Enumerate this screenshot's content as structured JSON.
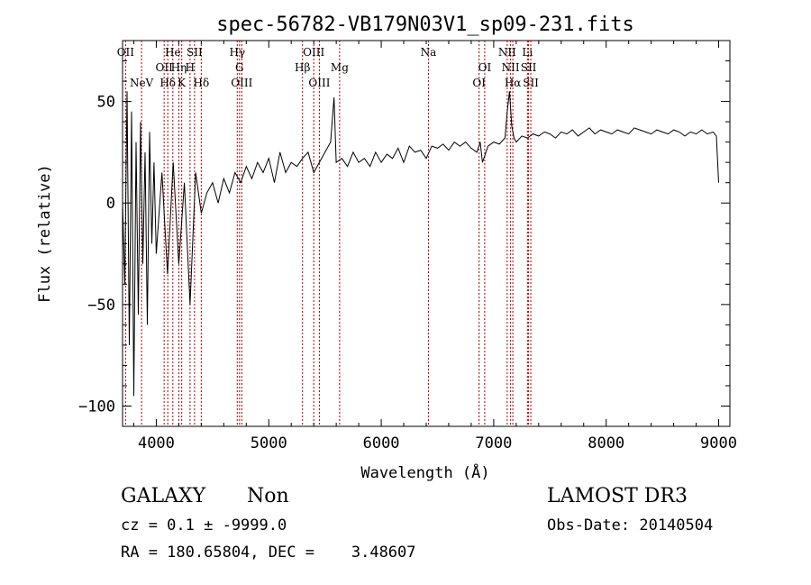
{
  "chart_data": {
    "type": "line",
    "title": "spec-56782-VB179N03V1_sp09-231.fits",
    "xlabel": "Wavelength (Å)",
    "ylabel": "Flux (relative)",
    "xlim": [
      3700,
      9100
    ],
    "ylim": [
      -110,
      80
    ],
    "x_ticks": [
      4000,
      5000,
      6000,
      7000,
      8000,
      9000
    ],
    "x_tick_labels": [
      "4000",
      "5000",
      "6000",
      "7000",
      "8000",
      "9000"
    ],
    "y_ticks": [
      -100,
      -50,
      0,
      50
    ],
    "y_tick_labels": [
      "−100",
      "−50",
      "0",
      "50"
    ],
    "series": [
      {
        "name": "spectrum",
        "x": [
          3700,
          3720,
          3740,
          3760,
          3780,
          3800,
          3820,
          3840,
          3860,
          3880,
          3900,
          3920,
          3940,
          3960,
          3980,
          4000,
          4050,
          4100,
          4150,
          4200,
          4250,
          4300,
          4350,
          4400,
          4450,
          4500,
          4550,
          4600,
          4650,
          4700,
          4750,
          4800,
          4850,
          4900,
          4950,
          5000,
          5050,
          5100,
          5150,
          5200,
          5250,
          5300,
          5350,
          5400,
          5450,
          5500,
          5550,
          5580,
          5600,
          5650,
          5700,
          5750,
          5800,
          5850,
          5900,
          5950,
          6000,
          6050,
          6100,
          6150,
          6200,
          6250,
          6300,
          6350,
          6400,
          6450,
          6500,
          6550,
          6600,
          6650,
          6700,
          6750,
          6800,
          6850,
          6880,
          6900,
          6950,
          7000,
          7050,
          7100,
          7120,
          7140,
          7160,
          7180,
          7200,
          7250,
          7300,
          7350,
          7400,
          7450,
          7500,
          7550,
          7600,
          7650,
          7700,
          7750,
          7800,
          7850,
          7900,
          7950,
          8000,
          8050,
          8100,
          8150,
          8200,
          8250,
          8300,
          8350,
          8400,
          8450,
          8500,
          8550,
          8600,
          8650,
          8700,
          8750,
          8800,
          8850,
          8900,
          8950,
          8980,
          9000
        ],
        "y": [
          0,
          -40,
          55,
          -70,
          45,
          -95,
          30,
          -55,
          40,
          -30,
          25,
          -60,
          35,
          -20,
          20,
          -25,
          15,
          -35,
          20,
          -30,
          10,
          -50,
          15,
          -5,
          5,
          10,
          0,
          12,
          5,
          15,
          10,
          18,
          12,
          20,
          15,
          22,
          10,
          25,
          15,
          20,
          18,
          22,
          25,
          15,
          20,
          25,
          30,
          52,
          20,
          22,
          18,
          25,
          20,
          22,
          18,
          25,
          20,
          24,
          22,
          27,
          20,
          28,
          25,
          26,
          22,
          28,
          27,
          29,
          26,
          30,
          28,
          30,
          27,
          25,
          30,
          20,
          28,
          30,
          29,
          32,
          45,
          55,
          38,
          32,
          30,
          33,
          32,
          34,
          33,
          35,
          34,
          32,
          35,
          34,
          36,
          33,
          35,
          37,
          34,
          36,
          35,
          34,
          36,
          35,
          34,
          37,
          36,
          35,
          34,
          36,
          35,
          34,
          36,
          35,
          33,
          35,
          34,
          36,
          34,
          35,
          33,
          10
        ]
      }
    ],
    "line_markers": [
      {
        "x": 3727,
        "label": "OII",
        "row": 1
      },
      {
        "x": 3869,
        "label": "NeV",
        "row": 3
      },
      {
        "x": 4070,
        "label": "OII",
        "row": 2
      },
      {
        "x": 4102,
        "label": "Hδ",
        "row": 3
      },
      {
        "x": 4147,
        "label": "He",
        "row": 1
      },
      {
        "x": 4200,
        "label": "Hη",
        "row": 2
      },
      {
        "x": 4226,
        "label": "K",
        "row": 3
      },
      {
        "x": 4300,
        "label": "H",
        "row": 2
      },
      {
        "x": 4340,
        "label": "SII",
        "row": 1
      },
      {
        "x": 4400,
        "label": "Hδ",
        "row": 3
      },
      {
        "x": 4720,
        "label": "Hγ",
        "row": 1
      },
      {
        "x": 4740,
        "label": "G",
        "row": 2
      },
      {
        "x": 4760,
        "label": "OIII",
        "row": 3
      },
      {
        "x": 5300,
        "label": "Hβ",
        "row": 2
      },
      {
        "x": 5400,
        "label": "OIII",
        "row": 1
      },
      {
        "x": 5450,
        "label": "OIII",
        "row": 3
      },
      {
        "x": 5630,
        "label": "Mg",
        "row": 2
      },
      {
        "x": 6420,
        "label": "Na",
        "row": 1
      },
      {
        "x": 6870,
        "label": "OI",
        "row": 3
      },
      {
        "x": 6920,
        "label": "OI",
        "row": 2
      },
      {
        "x": 7120,
        "label": "NII",
        "row": 1
      },
      {
        "x": 7150,
        "label": "NII",
        "row": 2
      },
      {
        "x": 7170,
        "label": "Hα",
        "row": 3
      },
      {
        "x": 7300,
        "label": "Li",
        "row": 1
      },
      {
        "x": 7310,
        "label": "SII",
        "row": 2
      },
      {
        "x": 7330,
        "label": "SII",
        "row": 3
      }
    ],
    "grid": false,
    "legend": "none"
  },
  "footer": {
    "class_label": "GALAXY",
    "subclass_label": "Non",
    "survey_label": "LAMOST DR3",
    "cz_line": "cz = 0.1 ± -9999.0",
    "obs_date_line": "Obs-Date: 20140504",
    "coords_line": "RA = 180.65804, DEC =    3.48607"
  }
}
